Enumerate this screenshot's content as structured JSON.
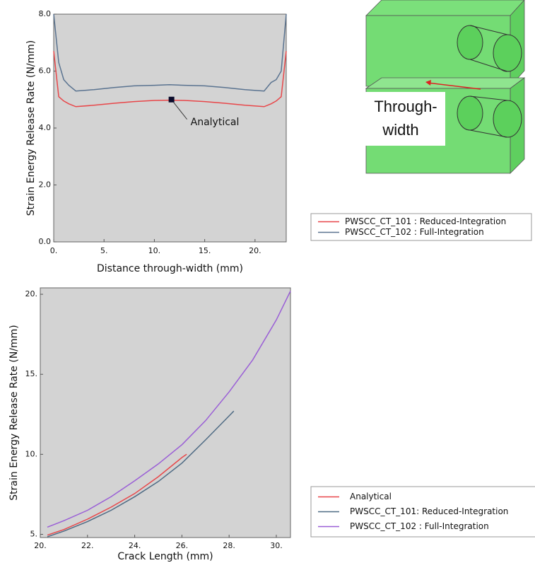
{
  "chart_data": [
    {
      "type": "line",
      "xlabel": "Distance through-width (mm)",
      "ylabel": "Strain Energy Release Rate (N/mm)",
      "xlim": [
        0,
        23.1
      ],
      "ylim": [
        0,
        8
      ],
      "xticks": [
        {
          "value": 0,
          "label": "0."
        },
        {
          "value": 5,
          "label": "5."
        },
        {
          "value": 10,
          "label": "10."
        },
        {
          "value": 15,
          "label": "15."
        },
        {
          "value": 20,
          "label": "20."
        }
      ],
      "yticks": [
        {
          "value": 0,
          "label": "0.0"
        },
        {
          "value": 2,
          "label": "2.0"
        },
        {
          "value": 4,
          "label": "4.0"
        },
        {
          "value": 6,
          "label": "6.0"
        },
        {
          "value": 8,
          "label": "8.0"
        }
      ],
      "series": [
        {
          "name": "PWSCC_CT_101 : Reduced-Integration",
          "color": "#e8474a",
          "x": [
            0,
            0.5,
            1,
            1.5,
            2.2,
            4,
            6,
            8,
            10,
            11.5,
            13,
            15,
            17,
            19,
            20.9,
            21.6,
            22.1,
            22.6,
            23.1
          ],
          "values": [
            6.7,
            5.1,
            4.95,
            4.85,
            4.75,
            4.8,
            4.87,
            4.93,
            4.97,
            4.98,
            4.97,
            4.93,
            4.87,
            4.8,
            4.75,
            4.85,
            4.95,
            5.1,
            6.7
          ]
        },
        {
          "name": "PWSCC_CT_102 : Full-Integration",
          "color": "#5a7390",
          "x": [
            0,
            0.5,
            1,
            1.5,
            2.2,
            4,
            6,
            8,
            10,
            11.5,
            13,
            15,
            17,
            19,
            20.9,
            21.6,
            22.1,
            22.6,
            23.1
          ],
          "values": [
            8.0,
            6.3,
            5.7,
            5.5,
            5.3,
            5.35,
            5.42,
            5.48,
            5.5,
            5.52,
            5.5,
            5.48,
            5.42,
            5.35,
            5.3,
            5.6,
            5.7,
            6.0,
            8.0
          ]
        }
      ],
      "annotation": {
        "text": "Analytical",
        "x": 11.7,
        "y": 5.0
      }
    },
    {
      "type": "line",
      "xlabel": "Crack Length (mm)",
      "ylabel": "Strain Energy Release Rate (N/mm)",
      "xlim": [
        20,
        30.6
      ],
      "ylim": [
        4.8,
        20.4
      ],
      "xticks": [
        {
          "value": 20,
          "label": "20."
        },
        {
          "value": 22,
          "label": "22."
        },
        {
          "value": 24,
          "label": "24."
        },
        {
          "value": 26,
          "label": "26."
        },
        {
          "value": 28,
          "label": "28."
        },
        {
          "value": 30,
          "label": "30."
        }
      ],
      "yticks": [
        {
          "value": 5,
          "label": "5."
        },
        {
          "value": 10,
          "label": "10."
        },
        {
          "value": 15,
          "label": "15."
        },
        {
          "value": 20,
          "label": "20."
        }
      ],
      "series": [
        {
          "name": "Analytical",
          "color": "#e8474a",
          "x": [
            20.3,
            21,
            22,
            23,
            24,
            25,
            26,
            26.2
          ],
          "values": [
            4.95,
            5.3,
            5.95,
            6.7,
            7.55,
            8.6,
            9.8,
            10.0
          ]
        },
        {
          "name": "PWSCC_CT_101: Reduced-Integration",
          "color": "#4f6b84",
          "x": [
            20.3,
            21,
            22,
            23,
            24,
            25,
            26,
            27,
            28,
            28.2
          ],
          "values": [
            4.85,
            5.2,
            5.8,
            6.5,
            7.35,
            8.3,
            9.45,
            10.9,
            12.4,
            12.7
          ]
        },
        {
          "name": "PWSCC_CT_102 : Full-Integration",
          "color": "#9a5fd6",
          "x": [
            20.3,
            21,
            22,
            23,
            24,
            25,
            26,
            27,
            28,
            29,
            30,
            30.6
          ],
          "values": [
            5.45,
            5.85,
            6.5,
            7.35,
            8.35,
            9.4,
            10.6,
            12.1,
            13.9,
            15.9,
            18.4,
            20.2
          ]
        }
      ]
    }
  ],
  "diagram": {
    "label_lines": [
      "Through-",
      "width"
    ]
  }
}
